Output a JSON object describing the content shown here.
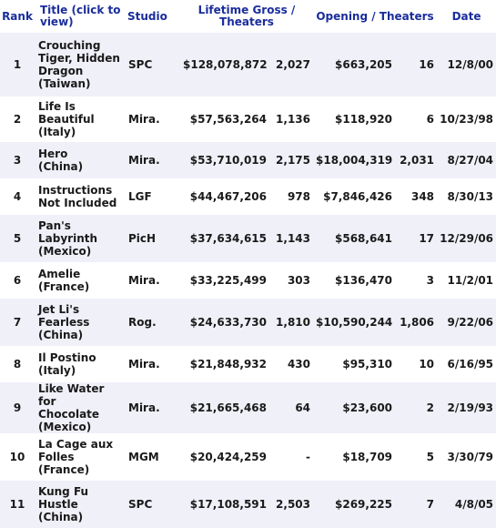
{
  "headers": {
    "rank": "Rank",
    "title": "Title (click to view)",
    "studio": "Studio",
    "lifetime": "Lifetime Gross / Theaters",
    "opening": "Opening / Theaters",
    "date": "Date"
  },
  "rows": [
    {
      "rank": "1",
      "title_lines": [
        "Crouching",
        "Tiger, Hidden",
        "Dragon"
      ],
      "country": "(Taiwan)",
      "studio": "SPC",
      "gross": "$128,078,872",
      "theaters": "2,027",
      "opening": "$663,205",
      "opening_theaters": "16",
      "date": "12/8/00"
    },
    {
      "rank": "2",
      "title_lines": [
        "Life Is",
        "Beautiful"
      ],
      "country": "(Italy)",
      "studio": "Mira.",
      "gross": "$57,563,264",
      "theaters": "1,136",
      "opening": "$118,920",
      "opening_theaters": "6",
      "date": "10/23/98"
    },
    {
      "rank": "3",
      "title_lines": [
        "Hero"
      ],
      "country": "(China)",
      "studio": "Mira.",
      "gross": "$53,710,019",
      "theaters": "2,175",
      "opening": "$18,004,319",
      "opening_theaters": "2,031",
      "date": "8/27/04"
    },
    {
      "rank": "4",
      "title_lines": [
        "Instructions",
        "Not Included"
      ],
      "country": "",
      "studio": "LGF",
      "gross": "$44,467,206",
      "theaters": "978",
      "opening": "$7,846,426",
      "opening_theaters": "348",
      "date": "8/30/13"
    },
    {
      "rank": "5",
      "title_lines": [
        "Pan's",
        "Labyrinth"
      ],
      "country": "(Mexico)",
      "studio": "PicH",
      "gross": "$37,634,615",
      "theaters": "1,143",
      "opening": "$568,641",
      "opening_theaters": "17",
      "date": "12/29/06"
    },
    {
      "rank": "6",
      "title_lines": [
        "Amelie"
      ],
      "country": "(France)",
      "studio": "Mira.",
      "gross": "$33,225,499",
      "theaters": "303",
      "opening": "$136,470",
      "opening_theaters": "3",
      "date": "11/2/01"
    },
    {
      "rank": "7",
      "title_lines": [
        "Jet Li's",
        "Fearless"
      ],
      "country": "(China)",
      "studio": "Rog.",
      "gross": "$24,633,730",
      "theaters": "1,810",
      "opening": "$10,590,244",
      "opening_theaters": "1,806",
      "date": "9/22/06"
    },
    {
      "rank": "8",
      "title_lines": [
        "Il Postino"
      ],
      "country": "(Italy)",
      "studio": "Mira.",
      "gross": "$21,848,932",
      "theaters": "430",
      "opening": "$95,310",
      "opening_theaters": "10",
      "date": "6/16/95"
    },
    {
      "rank": "9",
      "title_lines": [
        "Like Water for",
        "Chocolate"
      ],
      "country": "(Mexico)",
      "studio": "Mira.",
      "gross": "$21,665,468",
      "theaters": "64",
      "opening": "$23,600",
      "opening_theaters": "2",
      "date": "2/19/93"
    },
    {
      "rank": "10",
      "title_lines": [
        "La Cage aux",
        "Folles"
      ],
      "country": "(France)",
      "studio": "MGM",
      "gross": "$20,424,259",
      "theaters": "-",
      "opening": "$18,709",
      "opening_theaters": "5",
      "date": "3/30/79"
    },
    {
      "rank": "11",
      "title_lines": [
        "Kung Fu",
        "Hustle"
      ],
      "country": "(China)",
      "studio": "SPC",
      "gross": "$17,108,591",
      "theaters": "2,503",
      "opening": "$269,225",
      "opening_theaters": "7",
      "date": "4/8/05"
    }
  ]
}
